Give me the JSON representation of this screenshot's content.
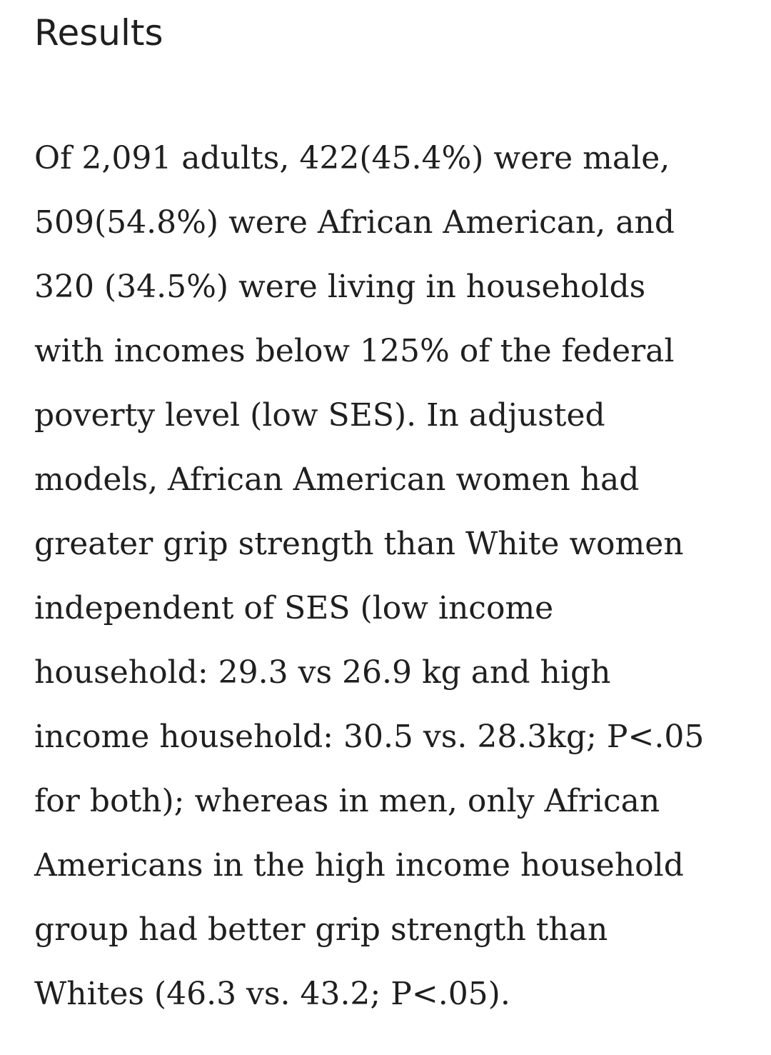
{
  "header": {
    "title": "Results"
  },
  "body": {
    "lines": [
      "Of 2,091 adults, 422(45.4%) were male,",
      "509(54.8%) were African American, and",
      "320 (34.5%) were living in households",
      "with incomes below 125% of the federal",
      "poverty level (low SES). In adjusted",
      "models, African American women had",
      "greater grip strength than White women",
      "independent of SES (low income",
      "household: 29.3 vs 26.9 kg and high",
      "income household: 30.5 vs. 28.3kg; P<.05",
      "for both); whereas in men, only African",
      "Americans in the high income household",
      "group had better grip strength than",
      "Whites (46.3 vs. 43.2; P<.05)."
    ]
  }
}
